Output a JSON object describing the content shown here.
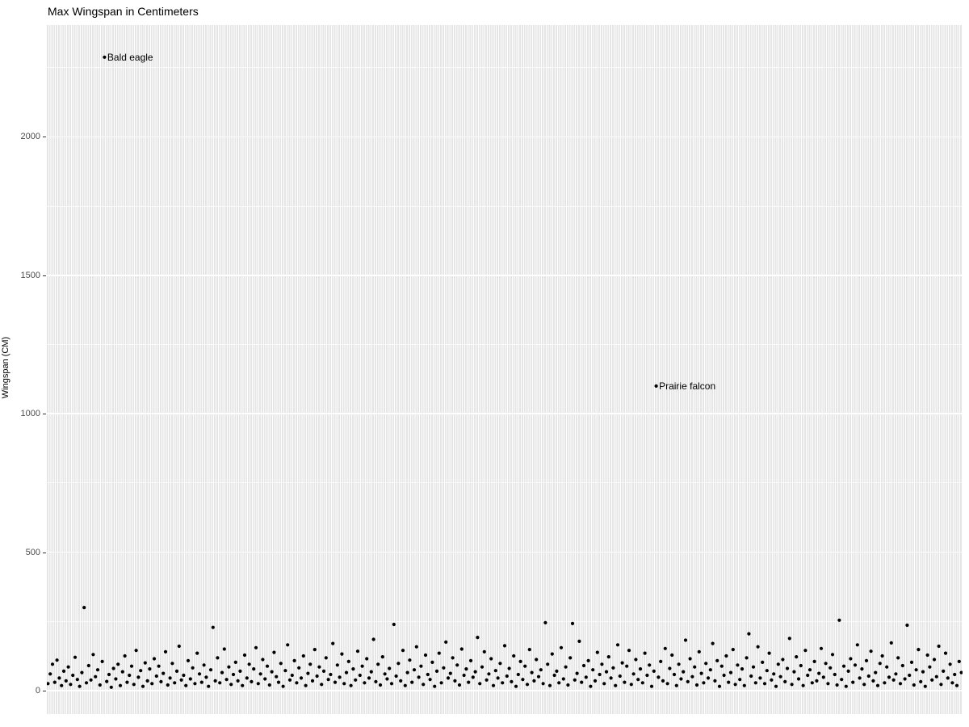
{
  "chart_data": {
    "type": "scatter",
    "title": "Max Wingspan in Centimeters",
    "xlabel": "",
    "ylabel": "Wingspan (CM)",
    "ylim": [
      -85,
      2404
    ],
    "yticks": [
      0,
      500,
      1000,
      1500,
      2000
    ],
    "yticks_minor": [
      250,
      750,
      1250,
      1750,
      2250
    ],
    "grid": "gray panel, white vertical gridline per category, white horizontal major/minor lines",
    "legend": "none",
    "panel_bg": "#ebebeb",
    "point_color": "#000000",
    "text_color": "#000000",
    "tick_label_color": "#4d4d4d",
    "n_categories": 405,
    "x_note": "one unlabeled category (bird species) per vertical gridline; x tick labels not shown",
    "annotations": [
      {
        "label": "Bald eagle",
        "index": 25,
        "value": 2288
      },
      {
        "label": "Prairie falcon",
        "index": 269,
        "value": 1100
      }
    ],
    "values": [
      25,
      60,
      95,
      30,
      110,
      45,
      18,
      70,
      35,
      85,
      22,
      55,
      120,
      40,
      15,
      65,
      300,
      28,
      90,
      38,
      130,
      50,
      75,
      20,
      105,
      2288,
      33,
      58,
      12,
      80,
      42,
      95,
      18,
      68,
      125,
      30,
      55,
      88,
      22,
      145,
      48,
      72,
      15,
      100,
      35,
      78,
      25,
      115,
      52,
      88,
      32,
      62,
      140,
      20,
      45,
      98,
      28,
      70,
      160,
      38,
      55,
      18,
      108,
      42,
      82,
      25,
      135,
      60,
      30,
      92,
      48,
      15,
      75,
      228,
      35,
      118,
      28,
      65,
      150,
      40,
      85,
      22,
      58,
      102,
      35,
      70,
      18,
      128,
      45,
      95,
      32,
      78,
      155,
      25,
      60,
      112,
      42,
      88,
      20,
      68,
      138,
      50,
      30,
      98,
      15,
      72,
      165,
      38,
      55,
      108,
      28,
      82,
      45,
      125,
      18,
      62,
      95,
      35,
      148,
      52,
      85,
      22,
      70,
      118,
      40,
      58,
      170,
      30,
      92,
      48,
      132,
      25,
      65,
      105,
      18,
      78,
      38,
      142,
      55,
      88,
      28,
      115,
      45,
      68,
      185,
      32,
      95,
      20,
      122,
      60,
      42,
      80,
      25,
      239,
      52,
      98,
      35,
      145,
      18,
      65,
      110,
      30,
      75,
      158,
      48,
      88,
      22,
      128,
      58,
      40,
      102,
      15,
      70,
      135,
      28,
      82,
      175,
      45,
      62,
      118,
      35,
      92,
      20,
      150,
      55,
      78,
      30,
      108,
      48,
      68,
      192,
      25,
      85,
      140,
      38,
      60,
      115,
      18,
      72,
      45,
      98,
      28,
      162,
      52,
      80,
      32,
      125,
      15,
      58,
      105,
      40,
      88,
      22,
      148,
      65,
      35,
      112,
      50,
      75,
      25,
      245,
      95,
      18,
      132,
      55,
      70,
      28,
      155,
      42,
      85,
      20,
      118,
      242,
      38,
      62,
      178,
      30,
      90,
      48,
      108,
      15,
      75,
      35,
      138,
      58,
      95,
      25,
      68,
      122,
      45,
      82,
      18,
      165,
      52,
      100,
      30,
      88,
      145,
      22,
      60,
      112,
      40,
      78,
      28,
      135,
      55,
      92,
      15,
      70,
      1100,
      48,
      105,
      35,
      152,
      25,
      80,
      128,
      58,
      18,
      95,
      42,
      68,
      182,
      32,
      115,
      50,
      85,
      20,
      140,
      62,
      28,
      98,
      45,
      75,
      170,
      35,
      108,
      15,
      88,
      55,
      125,
      30,
      65,
      148,
      22,
      92,
      40,
      78,
      18,
      118,
      205,
      52,
      85,
      28,
      158,
      45,
      102,
      25,
      72,
      135,
      38,
      60,
      15,
      95,
      50,
      112,
      32,
      80,
      188,
      22,
      68,
      122,
      42,
      90,
      18,
      145,
      55,
      75,
      28,
      105,
      35,
      62,
      152,
      48,
      98,
      25,
      82,
      130,
      58,
      20,
      254,
      40,
      88,
      15,
      70,
      115,
      30,
      92,
      165,
      45,
      78,
      22,
      108,
      52,
      142,
      35,
      65,
      18,
      98,
      125,
      28,
      85,
      48,
      172,
      38,
      60,
      118,
      25,
      90,
      42,
      236,
      55,
      102,
      20,
      75,
      148,
      32,
      68,
      15,
      128,
      85,
      38,
      112,
      50,
      160,
      22,
      70,
      135,
      45,
      95,
      28,
      58,
      18,
      105,
      65
    ]
  }
}
